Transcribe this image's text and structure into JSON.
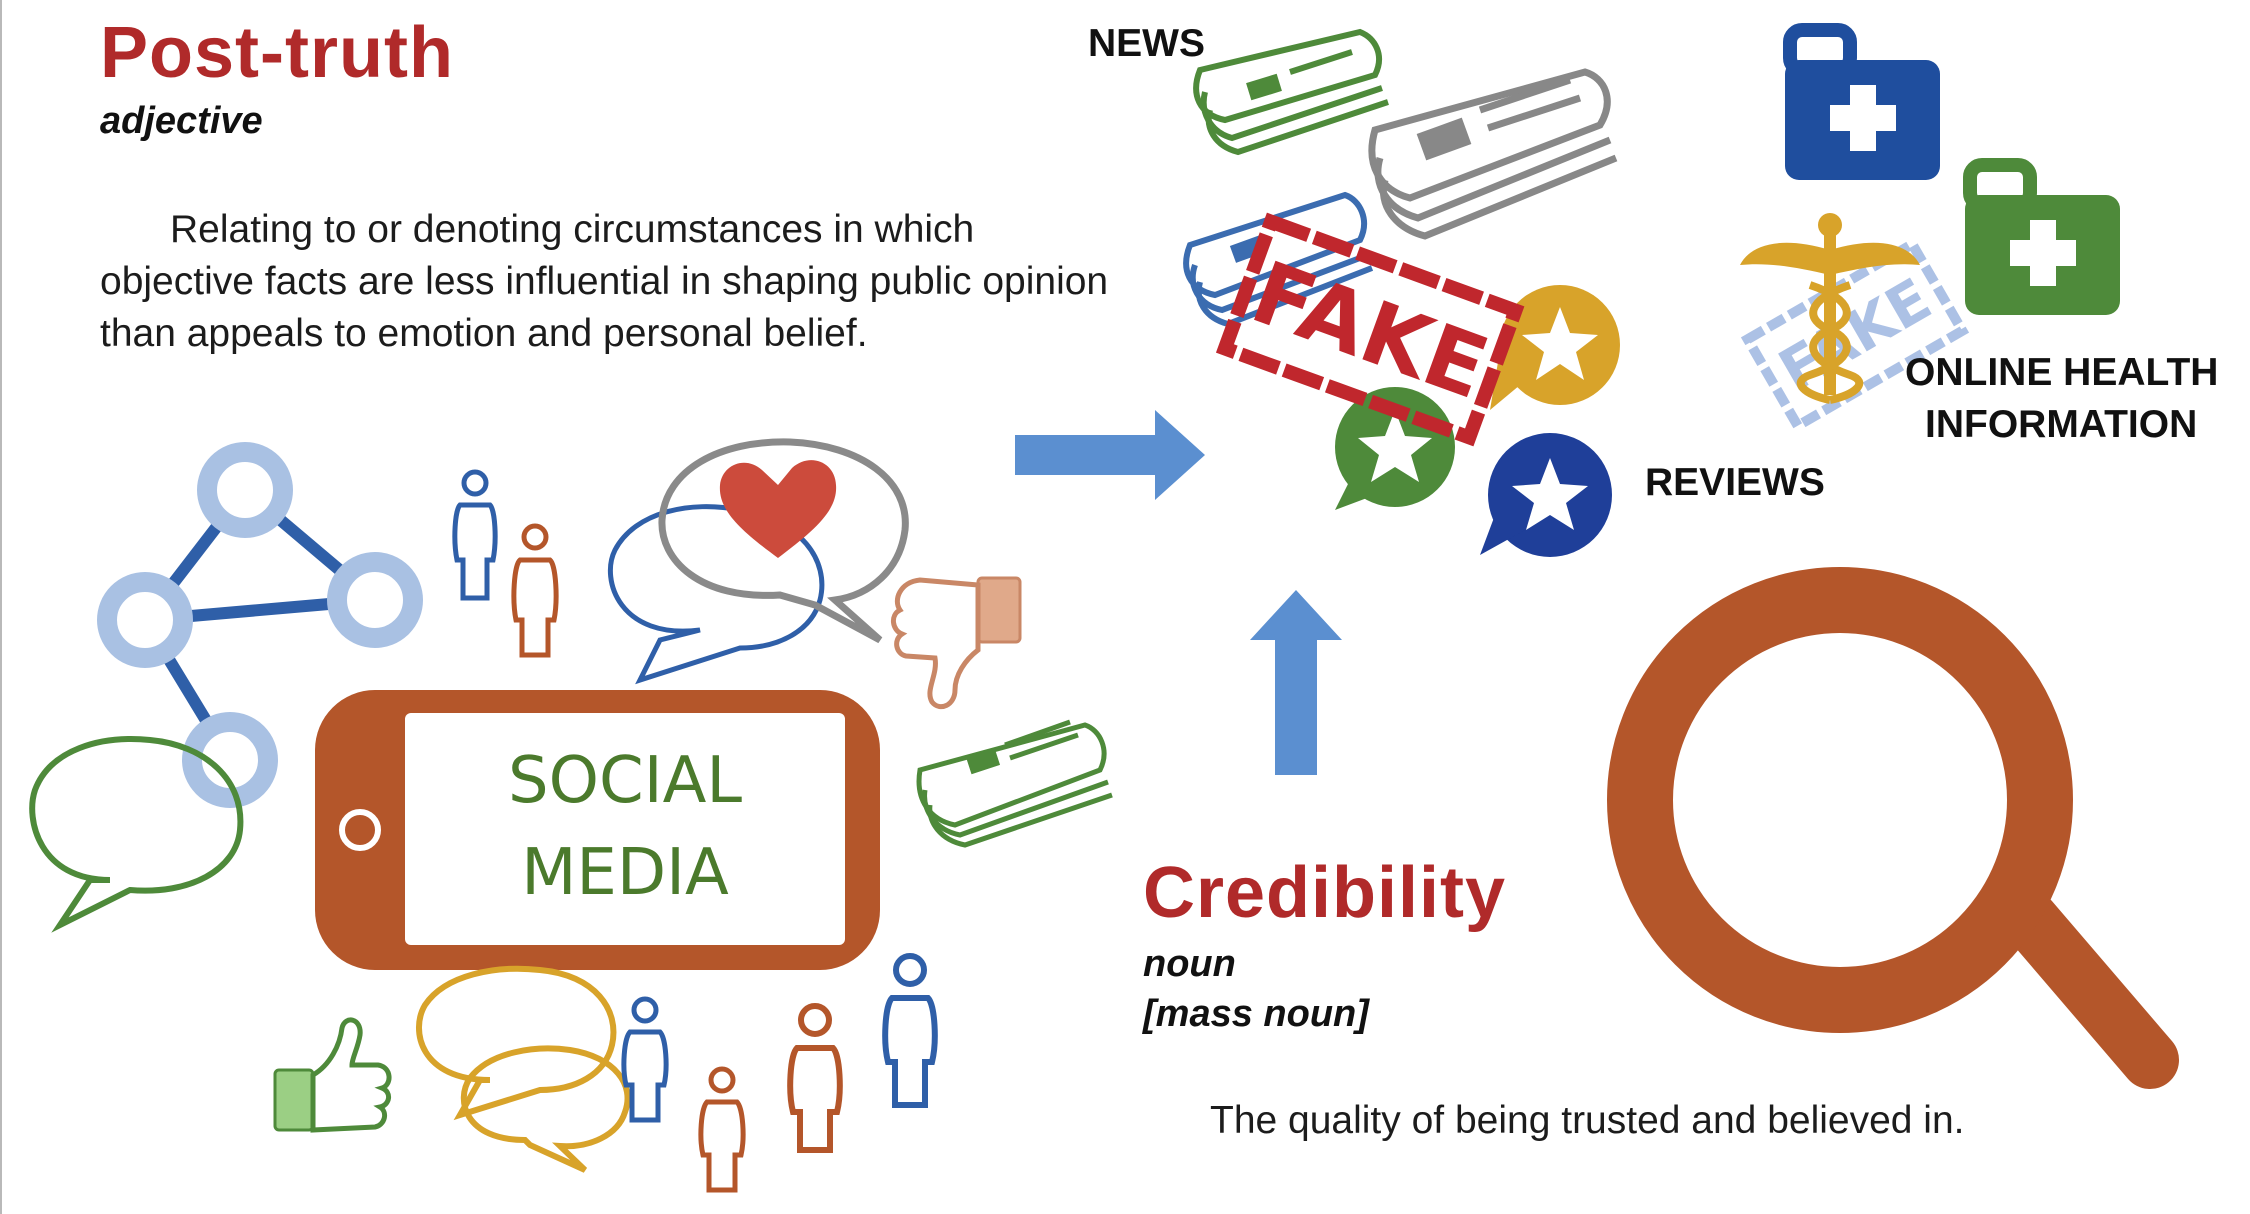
{
  "post_truth": {
    "word": "Post-truth",
    "part_of_speech": "adjective",
    "definition": "Relating to or denoting circumstances in which objective facts are less influential in shaping public opinion than appeals to emotion and personal belief."
  },
  "credibility": {
    "word": "Credibility",
    "part_of_speech": "noun",
    "qualifier": "[mass noun]",
    "definition": "The quality of being trusted and believed in."
  },
  "labels": {
    "social_media_line1": "SOCIAL",
    "social_media_line2": "MEDIA",
    "news": "NEWS",
    "fake_stamp": "FAKE",
    "reviews": "REVIEWS",
    "health_line1": "ONLINE HEALTH",
    "health_line2": "INFORMATION"
  },
  "icons": [
    "network-icon",
    "person-icon",
    "heart-speech-bubble-icon",
    "thumbs-down-icon",
    "thumbs-up-icon",
    "newspaper-icon",
    "speech-bubble-icon",
    "smartphone-icon",
    "arrow-right-icon",
    "arrow-up-icon",
    "star-badge-icon",
    "medical-kit-icon",
    "caduceus-icon",
    "magnifying-glass-icon"
  ],
  "colors": {
    "title_red": "#b02a2a",
    "phone_brown": "#b4562a",
    "social_green": "#4b7a2c",
    "arrow_blue": "#5b8fd0",
    "news_green": "#4e8a3a",
    "news_gray": "#888888",
    "news_blue": "#3b6cb0",
    "stamp_red": "#c0272d",
    "star_gold": "#d8a32a",
    "star_green": "#4e8a3a",
    "star_navy": "#1f3f99",
    "kit_blue": "#1f4e9e",
    "kit_green": "#4e8a3a",
    "caduceus_gold": "#d8a32a",
    "magnifier_brown": "#b4562a"
  }
}
